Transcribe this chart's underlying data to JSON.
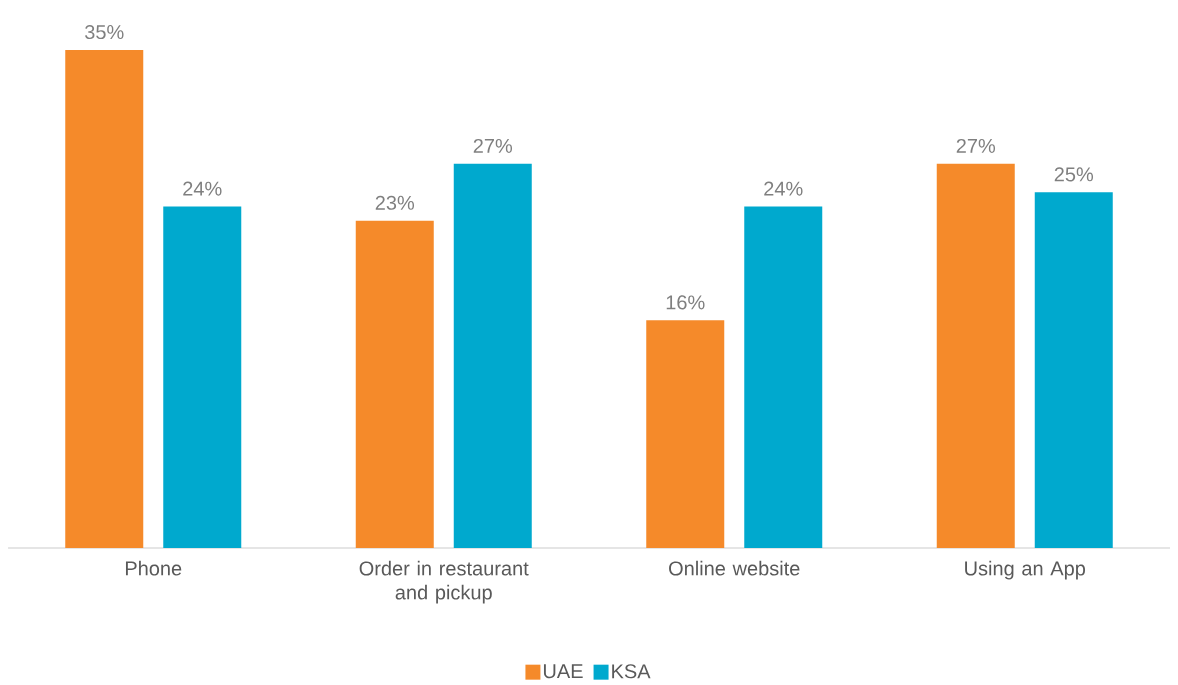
{
  "chart_data": {
    "type": "bar",
    "categories": [
      "Phone",
      "Order in restaurant and pickup",
      "Online website",
      "Using an App"
    ],
    "series": [
      {
        "name": "UAE",
        "color": "#f58a2a",
        "values": [
          35,
          23,
          16,
          27
        ],
        "value_labels": [
          "35%",
          "23%",
          "16%",
          "27%"
        ]
      },
      {
        "name": "KSA",
        "color": "#00a9ce",
        "values": [
          24,
          27,
          24,
          25
        ],
        "value_labels": [
          "24%",
          "27%",
          "24%",
          "25%"
        ]
      }
    ],
    "legend": "bottom",
    "grid": false
  }
}
